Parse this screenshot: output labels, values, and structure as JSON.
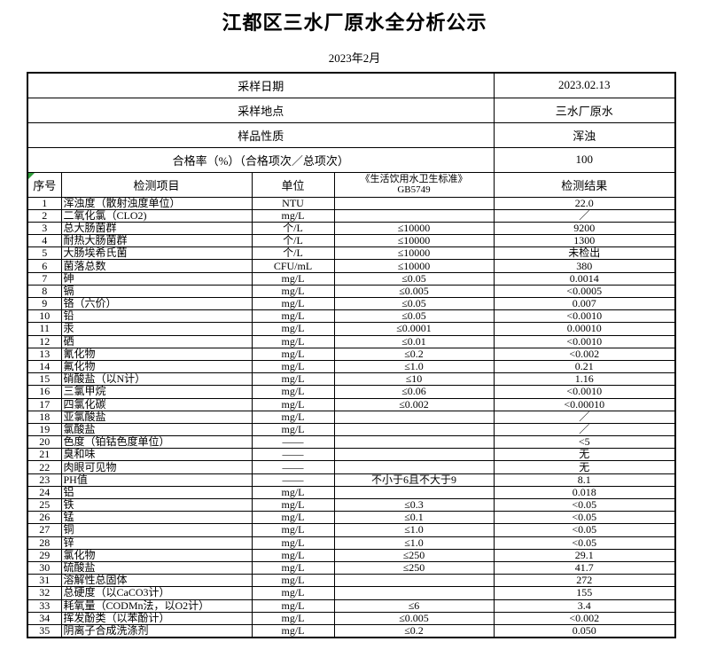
{
  "title": "江都区三水厂原水全分析公示",
  "subtitle": "2023年2月",
  "info_rows": [
    {
      "label": "采样日期",
      "value": "2023.02.13"
    },
    {
      "label": "采样地点",
      "value": "三水厂原水"
    },
    {
      "label": "样品性质",
      "value": "浑浊"
    },
    {
      "label": "合格率（%）（合格项次／总项次）",
      "value": "100"
    }
  ],
  "table": {
    "headers": {
      "no": "序号",
      "item": "检测项目",
      "unit": "单位",
      "standard_line1": "《生活饮用水卫生标准》",
      "standard_line2": "GB5749",
      "result": "检测结果"
    },
    "rows": [
      [
        "1",
        "浑浊度（散射浊度单位）",
        "NTU",
        "",
        "22.0"
      ],
      [
        "2",
        "二氧化氯（CLO2)",
        "mg/L",
        "",
        "／"
      ],
      [
        "3",
        "总大肠菌群",
        "个/L",
        "≤10000",
        "9200"
      ],
      [
        "4",
        "耐热大肠菌群",
        "个/L",
        "≤10000",
        "1300"
      ],
      [
        "5",
        "大肠埃希氏菌",
        "个/L",
        "≤10000",
        "未检出"
      ],
      [
        "6",
        "菌落总数",
        "CFU/mL",
        "≤10000",
        "380"
      ],
      [
        "7",
        "砷",
        "mg/L",
        "≤0.05",
        "0.0014"
      ],
      [
        "8",
        "镉",
        "mg/L",
        "≤0.005",
        "<0.0005"
      ],
      [
        "9",
        "铬（六价）",
        "mg/L",
        "≤0.05",
        "0.007"
      ],
      [
        "10",
        "铅",
        "mg/L",
        "≤0.05",
        "<0.0010"
      ],
      [
        "11",
        "汞",
        "mg/L",
        "≤0.0001",
        "0.00010"
      ],
      [
        "12",
        "硒",
        "mg/L",
        "≤0.01",
        "<0.0010"
      ],
      [
        "13",
        "氰化物",
        "mg/L",
        "≤0.2",
        "<0.002"
      ],
      [
        "14",
        "氟化物",
        "mg/L",
        "≤1.0",
        "0.21"
      ],
      [
        "15",
        "硝酸盐（以N计）",
        "mg/L",
        "≤10",
        "1.16"
      ],
      [
        "16",
        "三氯甲烷",
        "mg/L",
        "≤0.06",
        "<0.0010"
      ],
      [
        "17",
        "四氯化碳",
        "mg/L",
        "≤0.002",
        "<0.00010"
      ],
      [
        "18",
        "亚氯酸盐",
        "mg/L",
        "",
        "／"
      ],
      [
        "19",
        "氯酸盐",
        "mg/L",
        "",
        "／"
      ],
      [
        "20",
        "色度（铂钴色度单位）",
        "——",
        "",
        "<5"
      ],
      [
        "21",
        "臭和味",
        "——",
        "",
        "无"
      ],
      [
        "22",
        "肉眼可见物",
        "——",
        "",
        "无"
      ],
      [
        "23",
        "PH值",
        "——",
        "不小于6且不大于9",
        "8.1"
      ],
      [
        "24",
        "铝",
        "mg/L",
        "",
        "0.018"
      ],
      [
        "25",
        "铁",
        "mg/L",
        "≤0.3",
        "<0.05"
      ],
      [
        "26",
        "锰",
        "mg/L",
        "≤0.1",
        "<0.05"
      ],
      [
        "27",
        "铜",
        "mg/L",
        "≤1.0",
        "<0.05"
      ],
      [
        "28",
        "锌",
        "mg/L",
        "≤1.0",
        "<0.05"
      ],
      [
        "29",
        "氯化物",
        "mg/L",
        "≤250",
        "29.1"
      ],
      [
        "30",
        "硫酸盐",
        "mg/L",
        "≤250",
        "41.7"
      ],
      [
        "31",
        "溶解性总固体",
        "mg/L",
        "",
        "272"
      ],
      [
        "32",
        "总硬度（以CaCO3计）",
        "mg/L",
        "",
        "155"
      ],
      [
        "33",
        "耗氧量（CODMn法，以O2计）",
        "mg/L",
        "≤6",
        "3.4"
      ],
      [
        "34",
        "挥发酚类（以苯酚计）",
        "mg/L",
        "≤0.005",
        "<0.002"
      ],
      [
        "35",
        "阴离子合成洗涤剂",
        "mg/L",
        "≤0.2",
        "0.050"
      ]
    ]
  },
  "colors": {
    "text": "#000000",
    "border": "#000000",
    "background": "#ffffff",
    "comment_marker": "#2e9e3a"
  }
}
